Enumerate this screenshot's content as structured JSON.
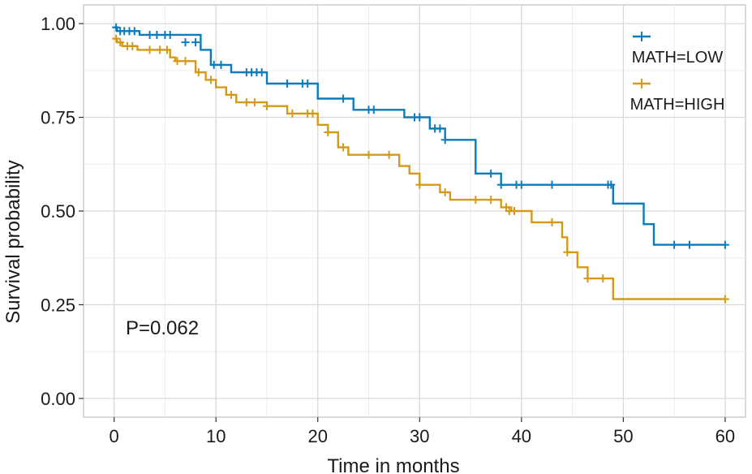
{
  "chart_data": {
    "type": "line",
    "subtype": "kaplan-meier",
    "xlabel": "Time in months",
    "ylabel": "Survival probability",
    "xlim": [
      -3,
      62
    ],
    "ylim": [
      -0.05,
      1.05
    ],
    "x_ticks": [
      0,
      10,
      20,
      30,
      40,
      50,
      60
    ],
    "x_tick_labels": [
      "0",
      "10",
      "20",
      "30",
      "40",
      "50",
      "60"
    ],
    "y_ticks": [
      0,
      0.25,
      0.5,
      0.75,
      1.0
    ],
    "y_tick_labels": [
      "0.00",
      "0.25",
      "0.50",
      "0.75",
      "1.00"
    ],
    "grid": true,
    "legend_position": "top-right",
    "annotation": "P=0.062",
    "series": [
      {
        "name": "MATH=LOW",
        "color": "#0a7bbc",
        "steps": [
          [
            0,
            0.99
          ],
          [
            0.3,
            0.98
          ],
          [
            2.5,
            0.97
          ],
          [
            8.5,
            0.93
          ],
          [
            9.5,
            0.89
          ],
          [
            11.5,
            0.87
          ],
          [
            15,
            0.84
          ],
          [
            20,
            0.8
          ],
          [
            23.5,
            0.77
          ],
          [
            28.5,
            0.75
          ],
          [
            31,
            0.72
          ],
          [
            32.5,
            0.69
          ],
          [
            35.5,
            0.6
          ],
          [
            38,
            0.57
          ],
          [
            49,
            0.52
          ],
          [
            52,
            0.465
          ],
          [
            53,
            0.41
          ],
          [
            60,
            0.41
          ]
        ],
        "censor": [
          [
            0.2,
            0.99
          ],
          [
            0.6,
            0.98
          ],
          [
            1.0,
            0.98
          ],
          [
            1.5,
            0.98
          ],
          [
            2.0,
            0.98
          ],
          [
            3.5,
            0.97
          ],
          [
            4.2,
            0.97
          ],
          [
            5.0,
            0.97
          ],
          [
            5.5,
            0.97
          ],
          [
            7.0,
            0.95
          ],
          [
            8.0,
            0.95
          ],
          [
            9.8,
            0.89
          ],
          [
            10.5,
            0.89
          ],
          [
            13.0,
            0.87
          ],
          [
            13.5,
            0.87
          ],
          [
            14.0,
            0.87
          ],
          [
            14.5,
            0.87
          ],
          [
            17.0,
            0.84
          ],
          [
            18.5,
            0.84
          ],
          [
            19.0,
            0.84
          ],
          [
            22.5,
            0.8
          ],
          [
            25.0,
            0.77
          ],
          [
            25.5,
            0.77
          ],
          [
            29.5,
            0.75
          ],
          [
            30.0,
            0.75
          ],
          [
            31.5,
            0.72
          ],
          [
            32.0,
            0.72
          ],
          [
            32.5,
            0.69
          ],
          [
            37.0,
            0.6
          ],
          [
            38.0,
            0.57
          ],
          [
            39.5,
            0.57
          ],
          [
            40.0,
            0.57
          ],
          [
            43.0,
            0.57
          ],
          [
            48.5,
            0.57
          ],
          [
            48.8,
            0.57
          ],
          [
            55.0,
            0.41
          ],
          [
            56.5,
            0.41
          ],
          [
            60.0,
            0.41
          ]
        ]
      },
      {
        "name": "MATH=HIGH",
        "color": "#d49a17",
        "steps": [
          [
            0,
            0.96
          ],
          [
            0.3,
            0.95
          ],
          [
            0.8,
            0.94
          ],
          [
            2.3,
            0.93
          ],
          [
            5.5,
            0.91
          ],
          [
            6.0,
            0.9
          ],
          [
            8.0,
            0.87
          ],
          [
            9.0,
            0.85
          ],
          [
            10.0,
            0.83
          ],
          [
            11.0,
            0.81
          ],
          [
            12.0,
            0.79
          ],
          [
            15.0,
            0.78
          ],
          [
            17.0,
            0.76
          ],
          [
            20.0,
            0.73
          ],
          [
            21.0,
            0.71
          ],
          [
            22.0,
            0.67
          ],
          [
            23.0,
            0.65
          ],
          [
            28.0,
            0.62
          ],
          [
            29.0,
            0.6
          ],
          [
            30.0,
            0.57
          ],
          [
            32.0,
            0.55
          ],
          [
            33.0,
            0.53
          ],
          [
            38.0,
            0.51
          ],
          [
            39.0,
            0.5
          ],
          [
            41.0,
            0.47
          ],
          [
            44.0,
            0.43
          ],
          [
            44.5,
            0.39
          ],
          [
            45.5,
            0.35
          ],
          [
            46.5,
            0.32
          ],
          [
            49.0,
            0.265
          ],
          [
            60,
            0.265
          ]
        ],
        "censor": [
          [
            0.2,
            0.96
          ],
          [
            0.6,
            0.95
          ],
          [
            1.3,
            0.94
          ],
          [
            1.8,
            0.94
          ],
          [
            3.5,
            0.93
          ],
          [
            4.5,
            0.93
          ],
          [
            5.2,
            0.93
          ],
          [
            6.2,
            0.9
          ],
          [
            7.0,
            0.9
          ],
          [
            8.3,
            0.87
          ],
          [
            9.5,
            0.85
          ],
          [
            11.5,
            0.81
          ],
          [
            13.0,
            0.79
          ],
          [
            13.8,
            0.79
          ],
          [
            15.0,
            0.78
          ],
          [
            17.5,
            0.76
          ],
          [
            19.0,
            0.76
          ],
          [
            19.5,
            0.76
          ],
          [
            21.0,
            0.71
          ],
          [
            22.5,
            0.67
          ],
          [
            25.0,
            0.65
          ],
          [
            27.0,
            0.65
          ],
          [
            30.0,
            0.57
          ],
          [
            32.5,
            0.55
          ],
          [
            35.5,
            0.53
          ],
          [
            37.0,
            0.53
          ],
          [
            38.5,
            0.51
          ],
          [
            38.8,
            0.5
          ],
          [
            39.3,
            0.5
          ],
          [
            43.0,
            0.47
          ],
          [
            44.5,
            0.39
          ],
          [
            46.5,
            0.32
          ],
          [
            48.0,
            0.32
          ],
          [
            60.0,
            0.265
          ]
        ]
      }
    ]
  }
}
